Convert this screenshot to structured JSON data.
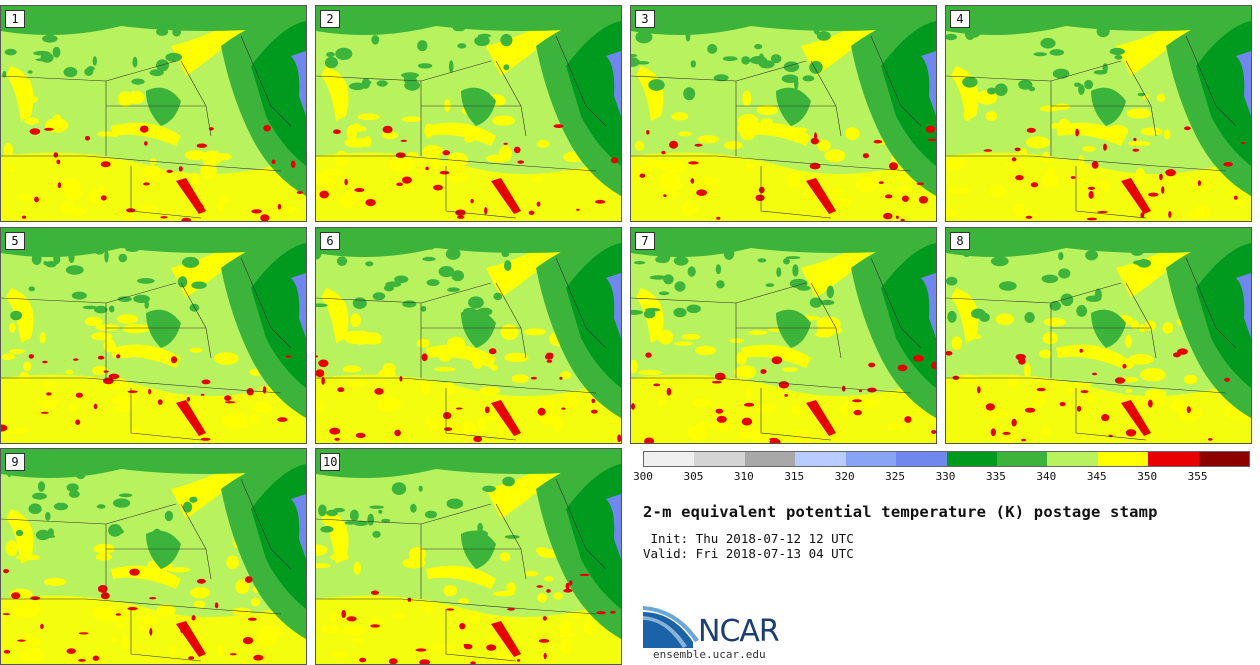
{
  "panels": [
    {
      "label": "1"
    },
    {
      "label": "2"
    },
    {
      "label": "3"
    },
    {
      "label": "4"
    },
    {
      "label": "5"
    },
    {
      "label": "6"
    },
    {
      "label": "7"
    },
    {
      "label": "8"
    },
    {
      "label": "9"
    },
    {
      "label": "10"
    }
  ],
  "colorbar": {
    "colors": [
      "#f0f0f0",
      "#d4d4d4",
      "#a8a8a8",
      "#b8ccff",
      "#8aa4f5",
      "#7088ee",
      "#009a1e",
      "#3cb43c",
      "#b8f25e",
      "#ffff00",
      "#e60000",
      "#8c0000"
    ],
    "tick_labels": [
      "300",
      "305",
      "310",
      "315",
      "320",
      "325",
      "330",
      "335",
      "340",
      "345",
      "350",
      "355"
    ]
  },
  "title": "2-m equivalent potential temperature (K) postage stamp",
  "init": " Init: Thu 2018-07-12 12 UTC",
  "valid": "Valid: Fri 2018-07-13 04 UTC",
  "logo": {
    "text": "NCAR",
    "url": "ensemble.ucar.edu"
  }
}
